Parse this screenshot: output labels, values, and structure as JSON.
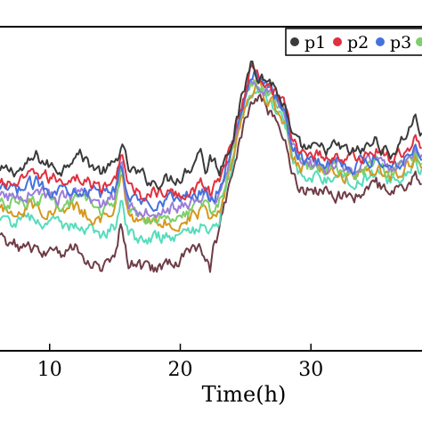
{
  "chart_data": {
    "type": "line",
    "title": "",
    "xlabel": "Time(h)",
    "ylabel": "",
    "xlim": [
      6.2,
      38.5
    ],
    "ylim": [
      0,
      1
    ],
    "x_ticks": [
      10,
      20,
      30
    ],
    "grid": false,
    "legend_position": "top-right",
    "series": [
      {
        "name": "p1",
        "color": "#3a3a3a",
        "anchors": [
          [
            6,
            0.55
          ],
          [
            8,
            0.56
          ],
          [
            9,
            0.6
          ],
          [
            10,
            0.57
          ],
          [
            11,
            0.56
          ],
          [
            12,
            0.62
          ],
          [
            13,
            0.58
          ],
          [
            14,
            0.55
          ],
          [
            15,
            0.57
          ],
          [
            15.5,
            0.64
          ],
          [
            16,
            0.56
          ],
          [
            17,
            0.54
          ],
          [
            18,
            0.52
          ],
          [
            19,
            0.53
          ],
          [
            20,
            0.54
          ],
          [
            21,
            0.58
          ],
          [
            21.5,
            0.63
          ],
          [
            22,
            0.55
          ],
          [
            22.3,
            0.6
          ],
          [
            23,
            0.56
          ],
          [
            24,
            0.66
          ],
          [
            25,
            0.82
          ],
          [
            25.5,
            0.91
          ],
          [
            26,
            0.85
          ],
          [
            27,
            0.83
          ],
          [
            28,
            0.75
          ],
          [
            28.5,
            0.66
          ],
          [
            29,
            0.63
          ],
          [
            30,
            0.62
          ],
          [
            31,
            0.62
          ],
          [
            32,
            0.63
          ],
          [
            33,
            0.61
          ],
          [
            34,
            0.62
          ],
          [
            35,
            0.65
          ],
          [
            36,
            0.6
          ],
          [
            37,
            0.65
          ],
          [
            38,
            0.72
          ],
          [
            38.5,
            0.66
          ]
        ]
      },
      {
        "name": "p2",
        "color": "#e0303e",
        "anchors": [
          [
            6,
            0.51
          ],
          [
            8,
            0.52
          ],
          [
            9,
            0.55
          ],
          [
            10,
            0.53
          ],
          [
            11,
            0.53
          ],
          [
            12,
            0.54
          ],
          [
            13,
            0.52
          ],
          [
            14,
            0.5
          ],
          [
            15,
            0.52
          ],
          [
            15.5,
            0.63
          ],
          [
            16,
            0.5
          ],
          [
            17,
            0.48
          ],
          [
            18,
            0.49
          ],
          [
            19,
            0.48
          ],
          [
            20,
            0.48
          ],
          [
            21,
            0.5
          ],
          [
            22,
            0.52
          ],
          [
            22.3,
            0.49
          ],
          [
            23,
            0.52
          ],
          [
            24,
            0.66
          ],
          [
            25,
            0.8
          ],
          [
            25.5,
            0.88
          ],
          [
            26,
            0.85
          ],
          [
            27,
            0.82
          ],
          [
            28,
            0.76
          ],
          [
            28.5,
            0.66
          ],
          [
            29,
            0.62
          ],
          [
            30,
            0.61
          ],
          [
            31,
            0.6
          ],
          [
            32,
            0.6
          ],
          [
            33,
            0.59
          ],
          [
            34,
            0.6
          ],
          [
            35,
            0.62
          ],
          [
            36,
            0.59
          ],
          [
            37,
            0.61
          ],
          [
            38,
            0.66
          ],
          [
            38.5,
            0.62
          ]
        ]
      },
      {
        "name": "p3",
        "color": "#4472dd",
        "anchors": [
          [
            6,
            0.49
          ],
          [
            8,
            0.5
          ],
          [
            9,
            0.52
          ],
          [
            10,
            0.5
          ],
          [
            11,
            0.5
          ],
          [
            12,
            0.51
          ],
          [
            13,
            0.49
          ],
          [
            14,
            0.48
          ],
          [
            15,
            0.5
          ],
          [
            15.5,
            0.59
          ],
          [
            16,
            0.47
          ],
          [
            17,
            0.46
          ],
          [
            18,
            0.46
          ],
          [
            19,
            0.47
          ],
          [
            20,
            0.47
          ],
          [
            21,
            0.48
          ],
          [
            22,
            0.5
          ],
          [
            22.3,
            0.47
          ],
          [
            23,
            0.5
          ],
          [
            24,
            0.64
          ],
          [
            25,
            0.8
          ],
          [
            25.5,
            0.86
          ],
          [
            26,
            0.84
          ],
          [
            27,
            0.8
          ],
          [
            28,
            0.74
          ],
          [
            28.5,
            0.65
          ],
          [
            29,
            0.6
          ],
          [
            30,
            0.59
          ],
          [
            31,
            0.58
          ],
          [
            32,
            0.59
          ],
          [
            33,
            0.57
          ],
          [
            34,
            0.58
          ],
          [
            35,
            0.6
          ],
          [
            36,
            0.57
          ],
          [
            37,
            0.59
          ],
          [
            38,
            0.63
          ],
          [
            38.5,
            0.6
          ]
        ]
      },
      {
        "name": "",
        "color": "#9b7ed9",
        "anchors": [
          [
            6,
            0.47
          ],
          [
            8,
            0.48
          ],
          [
            9,
            0.5
          ],
          [
            10,
            0.48
          ],
          [
            11,
            0.47
          ],
          [
            12,
            0.48
          ],
          [
            13,
            0.47
          ],
          [
            14,
            0.45
          ],
          [
            15,
            0.48
          ],
          [
            15.5,
            0.6
          ],
          [
            16,
            0.45
          ],
          [
            17,
            0.43
          ],
          [
            18,
            0.44
          ],
          [
            19,
            0.44
          ],
          [
            20,
            0.44
          ],
          [
            21,
            0.46
          ],
          [
            22,
            0.48
          ],
          [
            22.3,
            0.45
          ],
          [
            23,
            0.48
          ],
          [
            24,
            0.63
          ],
          [
            25,
            0.79
          ],
          [
            25.5,
            0.84
          ],
          [
            26,
            0.83
          ],
          [
            27,
            0.79
          ],
          [
            28,
            0.73
          ],
          [
            28.5,
            0.64
          ],
          [
            29,
            0.59
          ],
          [
            30,
            0.58
          ],
          [
            31,
            0.57
          ],
          [
            32,
            0.57
          ],
          [
            33,
            0.56
          ],
          [
            34,
            0.57
          ],
          [
            35,
            0.59
          ],
          [
            36,
            0.56
          ],
          [
            37,
            0.58
          ],
          [
            38,
            0.62
          ],
          [
            38.5,
            0.59
          ]
        ]
      },
      {
        "name": "",
        "color": "#7cd06a",
        "anchors": [
          [
            6,
            0.45
          ],
          [
            8,
            0.46
          ],
          [
            9,
            0.47
          ],
          [
            10,
            0.46
          ],
          [
            11,
            0.45
          ],
          [
            12,
            0.46
          ],
          [
            13,
            0.45
          ],
          [
            14,
            0.43
          ],
          [
            15,
            0.46
          ],
          [
            15.5,
            0.57
          ],
          [
            16,
            0.43
          ],
          [
            17,
            0.41
          ],
          [
            18,
            0.42
          ],
          [
            19,
            0.42
          ],
          [
            20,
            0.42
          ],
          [
            21,
            0.44
          ],
          [
            22,
            0.46
          ],
          [
            22.3,
            0.43
          ],
          [
            23,
            0.46
          ],
          [
            24,
            0.62
          ],
          [
            25,
            0.78
          ],
          [
            25.5,
            0.83
          ],
          [
            26,
            0.82
          ],
          [
            27,
            0.78
          ],
          [
            28,
            0.72
          ],
          [
            28.5,
            0.63
          ],
          [
            29,
            0.58
          ],
          [
            30,
            0.57
          ],
          [
            31,
            0.56
          ],
          [
            32,
            0.56
          ],
          [
            33,
            0.55
          ],
          [
            34,
            0.56
          ],
          [
            35,
            0.58
          ],
          [
            36,
            0.55
          ],
          [
            37,
            0.57
          ],
          [
            38,
            0.61
          ],
          [
            38.5,
            0.58
          ]
        ]
      },
      {
        "name": "",
        "color": "#d4981e",
        "anchors": [
          [
            6,
            0.43
          ],
          [
            8,
            0.44
          ],
          [
            9,
            0.45
          ],
          [
            10,
            0.43
          ],
          [
            11,
            0.43
          ],
          [
            12,
            0.44
          ],
          [
            13,
            0.42
          ],
          [
            14,
            0.41
          ],
          [
            15,
            0.44
          ],
          [
            15.5,
            0.54
          ],
          [
            16,
            0.41
          ],
          [
            17,
            0.39
          ],
          [
            18,
            0.4
          ],
          [
            19,
            0.4
          ],
          [
            20,
            0.4
          ],
          [
            21,
            0.42
          ],
          [
            22,
            0.44
          ],
          [
            22.3,
            0.41
          ],
          [
            23,
            0.44
          ],
          [
            24,
            0.6
          ],
          [
            25,
            0.76
          ],
          [
            25.5,
            0.82
          ],
          [
            26,
            0.81
          ],
          [
            27,
            0.77
          ],
          [
            28,
            0.71
          ],
          [
            28.5,
            0.62
          ],
          [
            29,
            0.57
          ],
          [
            30,
            0.56
          ],
          [
            31,
            0.55
          ],
          [
            32,
            0.55
          ],
          [
            33,
            0.54
          ],
          [
            34,
            0.55
          ],
          [
            35,
            0.57
          ],
          [
            36,
            0.54
          ],
          [
            37,
            0.56
          ],
          [
            38,
            0.6
          ],
          [
            38.5,
            0.57
          ]
        ]
      },
      {
        "name": "",
        "color": "#56dcbc",
        "anchors": [
          [
            6,
            0.39
          ],
          [
            8,
            0.4
          ],
          [
            9,
            0.41
          ],
          [
            10,
            0.39
          ],
          [
            11,
            0.38
          ],
          [
            12,
            0.39
          ],
          [
            13,
            0.38
          ],
          [
            14,
            0.36
          ],
          [
            15,
            0.39
          ],
          [
            15.5,
            0.48
          ],
          [
            16,
            0.36
          ],
          [
            17,
            0.34
          ],
          [
            18,
            0.35
          ],
          [
            19,
            0.35
          ],
          [
            20,
            0.35
          ],
          [
            21,
            0.37
          ],
          [
            22,
            0.39
          ],
          [
            22.3,
            0.36
          ],
          [
            23,
            0.4
          ],
          [
            24,
            0.58
          ],
          [
            25,
            0.75
          ],
          [
            25.5,
            0.8
          ],
          [
            26,
            0.8
          ],
          [
            27,
            0.76
          ],
          [
            28,
            0.7
          ],
          [
            28.5,
            0.6
          ],
          [
            29,
            0.55
          ],
          [
            30,
            0.54
          ],
          [
            31,
            0.53
          ],
          [
            32,
            0.53
          ],
          [
            33,
            0.52
          ],
          [
            34,
            0.53
          ],
          [
            35,
            0.55
          ],
          [
            36,
            0.52
          ],
          [
            37,
            0.54
          ],
          [
            38,
            0.58
          ],
          [
            38.5,
            0.55
          ]
        ]
      },
      {
        "name": "",
        "color": "#6e3c46",
        "anchors": [
          [
            6,
            0.35
          ],
          [
            7,
            0.33
          ],
          [
            8,
            0.32
          ],
          [
            9,
            0.31
          ],
          [
            10,
            0.3
          ],
          [
            11,
            0.3
          ],
          [
            12,
            0.33
          ],
          [
            13,
            0.27
          ],
          [
            14,
            0.26
          ],
          [
            15,
            0.3
          ],
          [
            15.5,
            0.4
          ],
          [
            16,
            0.28
          ],
          [
            17,
            0.26
          ],
          [
            18,
            0.25
          ],
          [
            19,
            0.27
          ],
          [
            20,
            0.28
          ],
          [
            21,
            0.3
          ],
          [
            21.5,
            0.33
          ],
          [
            22,
            0.29
          ],
          [
            22.3,
            0.24
          ],
          [
            22.6,
            0.32
          ],
          [
            23,
            0.38
          ],
          [
            24,
            0.56
          ],
          [
            25,
            0.72
          ],
          [
            25.5,
            0.78
          ],
          [
            26,
            0.78
          ],
          [
            27,
            0.73
          ],
          [
            28,
            0.66
          ],
          [
            28.5,
            0.56
          ],
          [
            29,
            0.5
          ],
          [
            30,
            0.5
          ],
          [
            31,
            0.5
          ],
          [
            32,
            0.48
          ],
          [
            33,
            0.47
          ],
          [
            34,
            0.49
          ],
          [
            35,
            0.51
          ],
          [
            36,
            0.48
          ],
          [
            37,
            0.5
          ],
          [
            38,
            0.54
          ],
          [
            38.5,
            0.51
          ]
        ]
      }
    ]
  }
}
